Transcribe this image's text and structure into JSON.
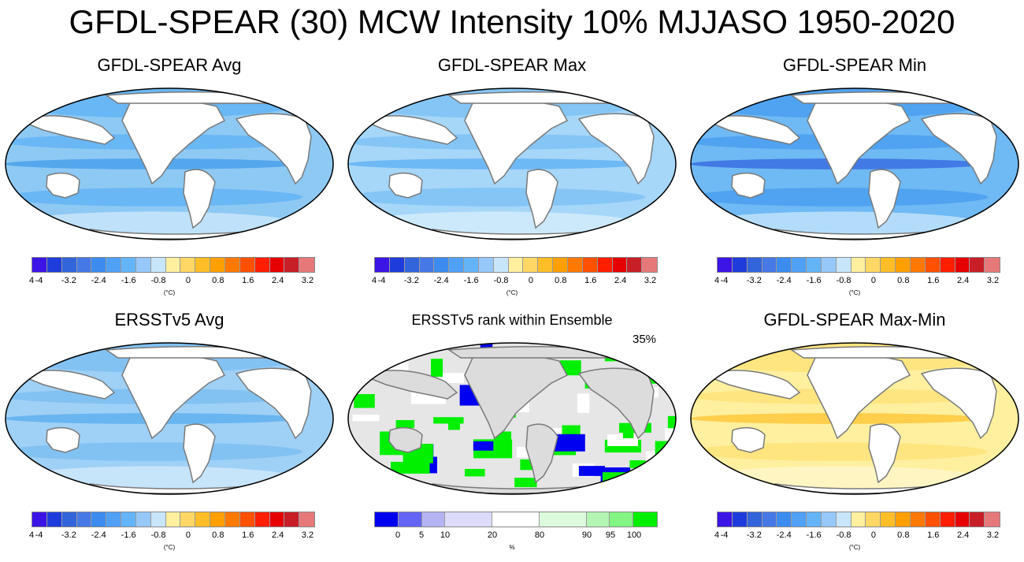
{
  "title": "GFDL-SPEAR (30) MCW Intensity 10% MJJASO 1950-2020",
  "panels": [
    {
      "title": "GFDL-SPEAR Avg",
      "type": "blue"
    },
    {
      "title": "GFDL-SPEAR Max",
      "type": "blue-light"
    },
    {
      "title": "GFDL-SPEAR Min",
      "type": "blue-dark"
    },
    {
      "title": "ERSSTv5 Avg",
      "type": "blue-obs"
    },
    {
      "title": "ERSSTv5 rank within Ensemble",
      "type": "rank"
    },
    {
      "title": "GFDL-SPEAR Max-Min",
      "type": "yellow"
    }
  ],
  "rank_percent": "35%",
  "colorbar": {
    "colors": [
      "#3c14e6",
      "#1e3cdc",
      "#3264dc",
      "#4678e6",
      "#3c8cf0",
      "#50a0f5",
      "#64b4fa",
      "#96c8fa",
      "#c8e6fa",
      "#fff0a0",
      "#ffd764",
      "#ffbe28",
      "#ffa000",
      "#ff7800",
      "#ff5000",
      "#ff1e00",
      "#e60000",
      "#c81e28",
      "#e6787a"
    ],
    "ticks": [
      "-4",
      "-3.2",
      "-2.4",
      "-1.6",
      "-0.8",
      "0",
      "0.8",
      "1.6",
      "2.4",
      "3.2",
      "4"
    ],
    "unit": "(°C)"
  },
  "rank_colorbar": {
    "colors": [
      "#0000f0",
      "#6464f5",
      "#b4b4f5",
      "#dcdcfa",
      "#ffffff",
      "#dcfadc",
      "#b4f5b4",
      "#82f582",
      "#00f000"
    ],
    "widths": [
      1,
      1,
      1,
      2,
      2,
      2,
      1,
      1,
      1
    ],
    "ticks": [
      "0",
      "5",
      "10",
      "20",
      "80",
      "90",
      "95",
      "100"
    ],
    "unit": "%"
  }
}
